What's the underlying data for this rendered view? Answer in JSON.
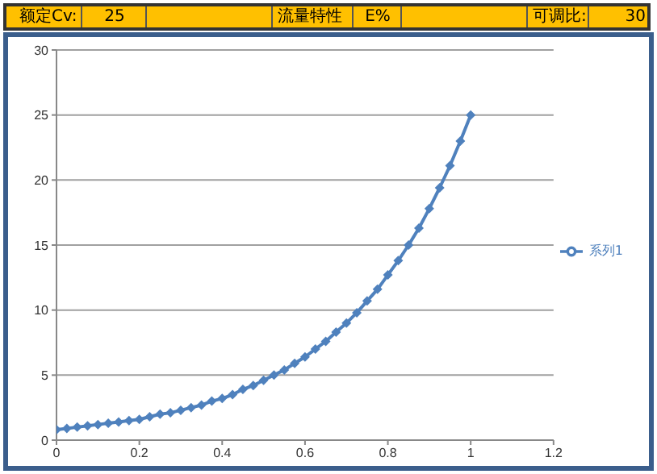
{
  "chart_data": {
    "type": "line",
    "annotations": [
      "额定Cv:",
      "25",
      "流量特性",
      "E%",
      "可调比:",
      "30"
    ],
    "x": [
      0,
      0.025,
      0.05,
      0.075,
      0.1,
      0.125,
      0.15,
      0.175,
      0.2,
      0.225,
      0.25,
      0.275,
      0.3,
      0.325,
      0.35,
      0.375,
      0.4,
      0.425,
      0.45,
      0.475,
      0.5,
      0.525,
      0.55,
      0.575,
      0.6,
      0.625,
      0.65,
      0.675,
      0.7,
      0.725,
      0.75,
      0.775,
      0.8,
      0.825,
      0.85,
      0.875,
      0.9,
      0.925,
      0.95,
      0.975,
      1
    ],
    "series": [
      {
        "name": "系列1",
        "color": "#4f81bd",
        "values": [
          0.8,
          0.9,
          1.0,
          1.1,
          1.2,
          1.3,
          1.4,
          1.5,
          1.6,
          1.8,
          2.0,
          2.1,
          2.3,
          2.5,
          2.7,
          3.0,
          3.2,
          3.5,
          3.9,
          4.2,
          4.6,
          5.0,
          5.4,
          5.9,
          6.4,
          7.0,
          7.6,
          8.3,
          9.0,
          9.8,
          10.7,
          11.6,
          12.7,
          13.8,
          15.0,
          16.3,
          17.8,
          19.4,
          21.1,
          23.0,
          25.0
        ]
      }
    ],
    "xlim": [
      0,
      1.2
    ],
    "xticks": [
      0,
      0.2,
      0.4,
      0.6,
      0.8,
      1,
      1.2
    ],
    "ylim": [
      0,
      30
    ],
    "yticks": [
      0,
      5,
      10,
      15,
      20,
      25,
      30
    ],
    "grid": "y",
    "legend": "right",
    "marker": "diamond",
    "line_style": "solid"
  }
}
